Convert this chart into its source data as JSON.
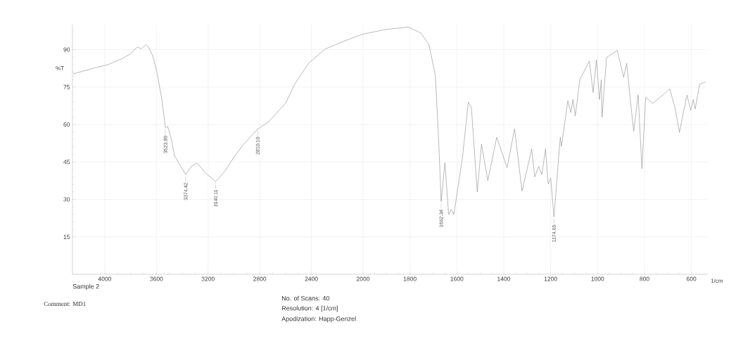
{
  "chart_data": [
    {
      "type": "line",
      "ylabel": "%T",
      "xlim": [
        4250,
        2000
      ],
      "ylim": [
        0,
        100
      ],
      "xticks": [
        4000,
        3600,
        3200,
        2800,
        2400
      ],
      "yticks": [
        15,
        30,
        45,
        60,
        75,
        90
      ],
      "grid": true,
      "series": [
        {
          "color": "#8a8a8a",
          "x": [
            4243,
            4081,
            3973,
            3865,
            3800,
            3746,
            3719,
            3681,
            3660,
            3627,
            3595,
            3557,
            3530,
            3513,
            3486,
            3459,
            3422,
            3373,
            3330,
            3286,
            3216,
            3141,
            3070,
            3000,
            2924,
            2816,
            2730,
            2600,
            2530,
            2422,
            2297,
            2168,
            2000
          ],
          "values": [
            80.3,
            82.6,
            84.0,
            86.4,
            88.3,
            91.1,
            90.3,
            92.0,
            90.9,
            87.3,
            80.8,
            69.6,
            58.7,
            59.2,
            54.5,
            47.4,
            44.2,
            39.9,
            43.2,
            44.6,
            40.4,
            37.1,
            41.3,
            46.9,
            52.1,
            58.2,
            61.1,
            68.5,
            76.1,
            84.5,
            90.1,
            93.0,
            96.2
          ]
        }
      ],
      "annotations": [
        {
          "text": "3523.89",
          "x": 3530,
          "y": 58.7
        },
        {
          "text": "3374.42",
          "x": 3373,
          "y": 39.9
        },
        {
          "text": "3140.11",
          "x": 3141,
          "y": 37.1
        },
        {
          "text": "2810.10",
          "x": 2816,
          "y": 58.2
        },
        "Sample 2",
        "Comment: MD1",
        "No. of Scans: 40",
        "Resolution:  4 [1/cm]",
        "Apodization:  Happ-Genzel"
      ]
    },
    {
      "type": "line",
      "xlabel": "1/cm",
      "xlim": [
        2000,
        530
      ],
      "ylim": [
        0,
        100
      ],
      "xticks": [
        2000,
        1800,
        1600,
        1400,
        1200,
        1000,
        800,
        600
      ],
      "yticks": [
        15,
        30,
        45,
        60,
        75,
        90
      ],
      "tick_labels": "x",
      "grid": true,
      "series": [
        {
          "color": "#8a8a8a",
          "x": [
            2000,
            1900,
            1808,
            1754,
            1719,
            1692,
            1678,
            1667,
            1651,
            1635,
            1624,
            1613,
            1576,
            1551,
            1538,
            1513,
            1495,
            1468,
            1430,
            1386,
            1354,
            1322,
            1281,
            1268,
            1251,
            1238,
            1222,
            1211,
            1200,
            1186,
            1159,
            1154,
            1127,
            1114,
            1105,
            1095,
            1076,
            1035,
            1019,
            1005,
            992,
            984,
            981,
            962,
            916,
            889,
            876,
            859,
            846,
            827,
            811,
            795,
            765,
            727,
            692,
            670,
            651,
            619,
            603,
            592,
            584,
            565,
            541
          ],
          "values": [
            96.2,
            98.1,
            99.0,
            96.7,
            92.0,
            79.8,
            54.5,
            29.1,
            44.6,
            23.9,
            25.9,
            23.9,
            46.9,
            69.0,
            66.7,
            33.0,
            52.1,
            37.5,
            54.9,
            42.7,
            58.2,
            33.3,
            50.2,
            39.0,
            43.2,
            39.9,
            50.2,
            36.2,
            38.5,
            23.0,
            54.9,
            51.2,
            69.5,
            64.8,
            70.0,
            63.4,
            77.9,
            85.4,
            72.8,
            85.9,
            70.0,
            77.9,
            62.9,
            86.8,
            89.7,
            78.9,
            84.5,
            68.5,
            57.3,
            71.8,
            42.3,
            70.9,
            68.5,
            71.4,
            74.2,
            66.7,
            56.8,
            71.8,
            65.7,
            70.0,
            66.2,
            76.1,
            77.0
          ]
        }
      ],
      "annotations": [
        {
          "text": "1662.34",
          "x": 1667,
          "y": 29.1
        },
        {
          "text": "1174.65",
          "x": 1186,
          "y": 23.0
        }
      ]
    }
  ]
}
